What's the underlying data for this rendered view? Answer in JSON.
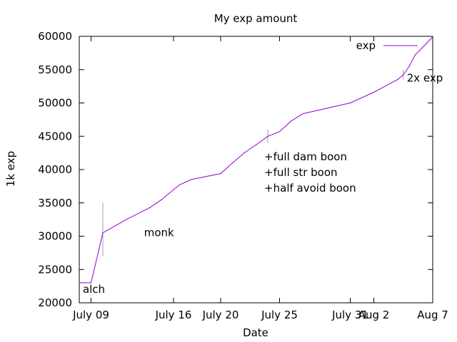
{
  "chart_data": {
    "type": "line",
    "title": "My exp amount",
    "xlabel": "Date",
    "ylabel": "1k exp",
    "x_ticks": [
      {
        "label": "July 09",
        "day": 9
      },
      {
        "label": "July 16",
        "day": 16
      },
      {
        "label": "July 20",
        "day": 20
      },
      {
        "label": "July 25",
        "day": 25
      },
      {
        "label": "July 31",
        "day": 31
      },
      {
        "label": "Aug 2",
        "day": 33
      },
      {
        "label": "Aug 7",
        "day": 38
      }
    ],
    "xlim": [
      8,
      38
    ],
    "ylim": [
      20000,
      60000
    ],
    "y_ticks": [
      20000,
      25000,
      30000,
      35000,
      40000,
      45000,
      50000,
      55000,
      60000
    ],
    "grid": false,
    "legend_position": "top-right",
    "series": [
      {
        "name": "exp",
        "color": "#9400d3",
        "points": [
          {
            "x": 8.0,
            "y": 23000
          },
          {
            "x": 9.0,
            "y": 23000
          },
          {
            "x": 10.0,
            "y": 30500
          },
          {
            "x": 12.0,
            "y": 32500
          },
          {
            "x": 14.0,
            "y": 34300
          },
          {
            "x": 15.0,
            "y": 35500
          },
          {
            "x": 16.0,
            "y": 37000
          },
          {
            "x": 16.5,
            "y": 37700
          },
          {
            "x": 17.5,
            "y": 38500
          },
          {
            "x": 20.0,
            "y": 39400
          },
          {
            "x": 21.0,
            "y": 41000
          },
          {
            "x": 22.0,
            "y": 42500
          },
          {
            "x": 23.0,
            "y": 43700
          },
          {
            "x": 24.0,
            "y": 45000
          },
          {
            "x": 25.0,
            "y": 45700
          },
          {
            "x": 26.0,
            "y": 47300
          },
          {
            "x": 27.0,
            "y": 48400
          },
          {
            "x": 31.0,
            "y": 50000
          },
          {
            "x": 33.0,
            "y": 51600
          },
          {
            "x": 35.0,
            "y": 53500
          },
          {
            "x": 35.5,
            "y": 54200
          },
          {
            "x": 36.0,
            "y": 55500
          },
          {
            "x": 36.5,
            "y": 57200
          },
          {
            "x": 37.5,
            "y": 59000
          },
          {
            "x": 38.0,
            "y": 59900
          }
        ]
      }
    ],
    "event_markers": [
      {
        "x": 10.0,
        "y_from": 27000,
        "y_to": 35000,
        "color": "#a0a0a0"
      },
      {
        "x": 24.0,
        "y_from": 44000,
        "y_to": 46000,
        "color": "#a0a0a0"
      },
      {
        "x": 35.5,
        "y_from": 53500,
        "y_to": 55000,
        "color": "#a0a0a0"
      }
    ],
    "annotations": [
      {
        "id": "alch",
        "text": "alch",
        "x": 8.3,
        "y": 21500
      },
      {
        "id": "monk",
        "text": "monk",
        "x": 13.5,
        "y": 30000
      },
      {
        "id": "boons",
        "lines": [
          "+full dam boon",
          "+full str boon",
          "+half avoid boon"
        ],
        "x": 23.7,
        "y": 41400
      },
      {
        "id": "double",
        "text": "2x exp",
        "x": 35.8,
        "y": 53200
      }
    ]
  }
}
